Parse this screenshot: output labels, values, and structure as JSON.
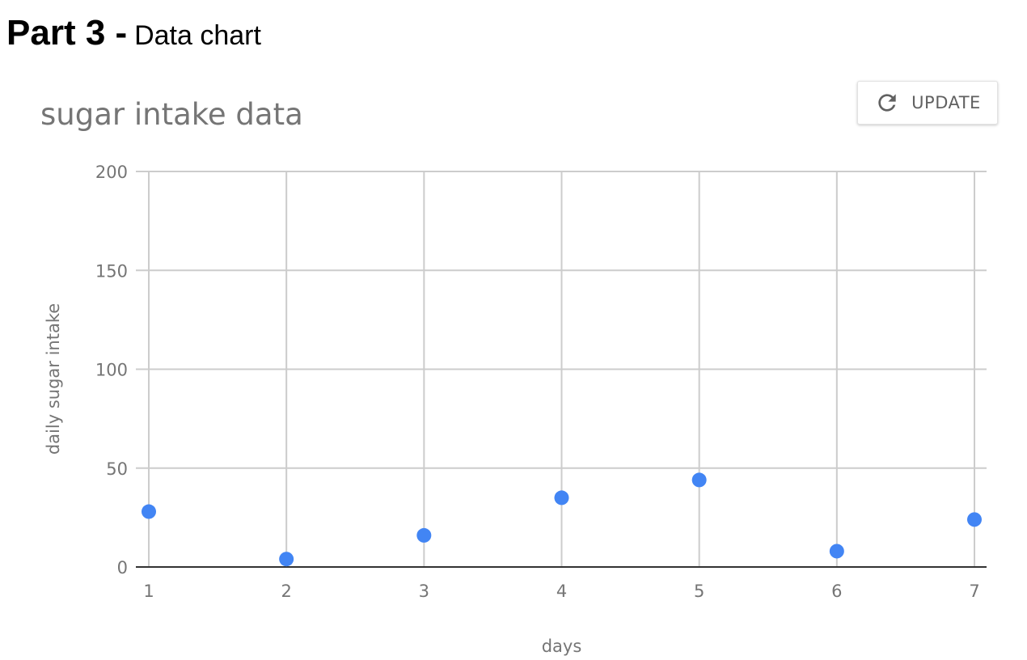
{
  "heading": {
    "part": "Part 3 -",
    "subtitle": "Data chart"
  },
  "update_button": {
    "label": "UPDATE",
    "icon": "refresh-icon"
  },
  "colors": {
    "point": "#4285F4",
    "grid": "#cccccc",
    "baseline": "#333333",
    "text": "#757575"
  },
  "chart_data": {
    "type": "scatter",
    "title": "sugar intake data",
    "xlabel": "days",
    "ylabel": "daily sugar intake",
    "x": [
      1,
      2,
      3,
      4,
      5,
      6,
      7
    ],
    "y": [
      28,
      4,
      16,
      35,
      44,
      8,
      24
    ],
    "xlim": [
      1,
      7
    ],
    "ylim": [
      0,
      200
    ],
    "xticks": [
      "1",
      "2",
      "3",
      "4",
      "5",
      "6",
      "7"
    ],
    "yticks": [
      "0",
      "50",
      "100",
      "150",
      "200"
    ],
    "grid": true,
    "legend": "none"
  }
}
